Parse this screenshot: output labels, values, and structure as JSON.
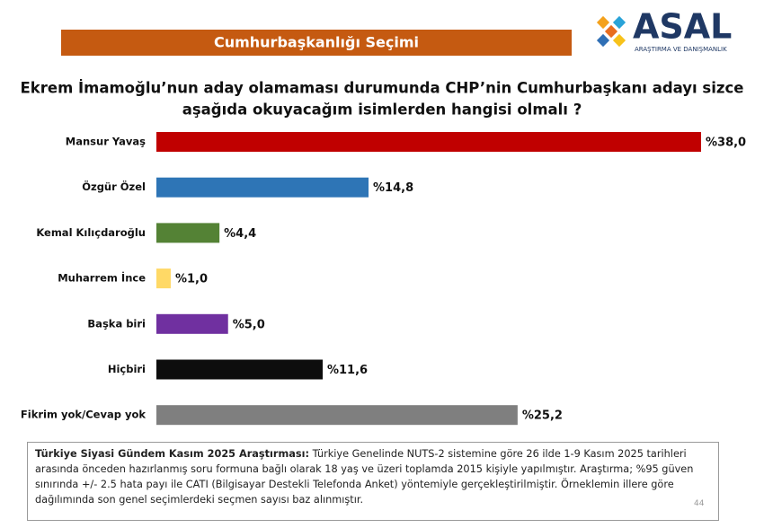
{
  "header": {
    "banner": "Cumhurbaşkanlığı Seçimi",
    "logo": "ASAL",
    "logo_subtitle": "ARAŞTIRMA VE DANIŞMANLIK"
  },
  "chart_data": {
    "type": "hbar",
    "title": [
      "Ekrem İmamoğlu’nun aday olamaması durumunda CHP’nin Cumhurbaşkanı adayı sizce",
      "aşağıda okuyacağım isimlerden hangisi olmalı ?"
    ],
    "categories": [
      "Mansur Yavaş",
      "Özgür Özel",
      "Kemal Kılıçdaroğlu",
      "Muharrem İnce",
      "Başka biri",
      "Hiçbiri",
      "Fikrim yok/Cevap yok"
    ],
    "values": [
      38.0,
      14.8,
      4.4,
      1.0,
      5.0,
      11.6,
      25.2
    ],
    "value_labels": [
      "%38,0",
      "%14,8",
      "%4,4",
      "%1,0",
      "%5,0",
      "%11,6",
      "%25,2"
    ],
    "colors": [
      "#c00000",
      "#2e75b6",
      "#548235",
      "#ffd966",
      "#7030a0",
      "#0d0d0d",
      "#7f7f7f"
    ]
  },
  "footnote": {
    "lead": "Türkiye Siyasi Gündem Kasım 2025 Araştırması:",
    "text": " Türkiye Genelinde NUTS-2 sistemine göre 26 ilde 1-9 Kasım 2025 tarihleri arasında önceden hazırlanmış soru formuna bağlı olarak 18 yaş ve üzeri toplamda 2015 kişiyle yapılmıştır. Araştırma; %95 güven sınırında +/- 2.5 hata payı ile CATI (Bilgisayar Destekli Telefonda Anket) yöntemiyle gerçekleştirilmiştir. Örneklemin illere göre dağılımında son genel seçimlerdeki seçmen sayısı baz alınmıştır.",
    "page": "44"
  }
}
